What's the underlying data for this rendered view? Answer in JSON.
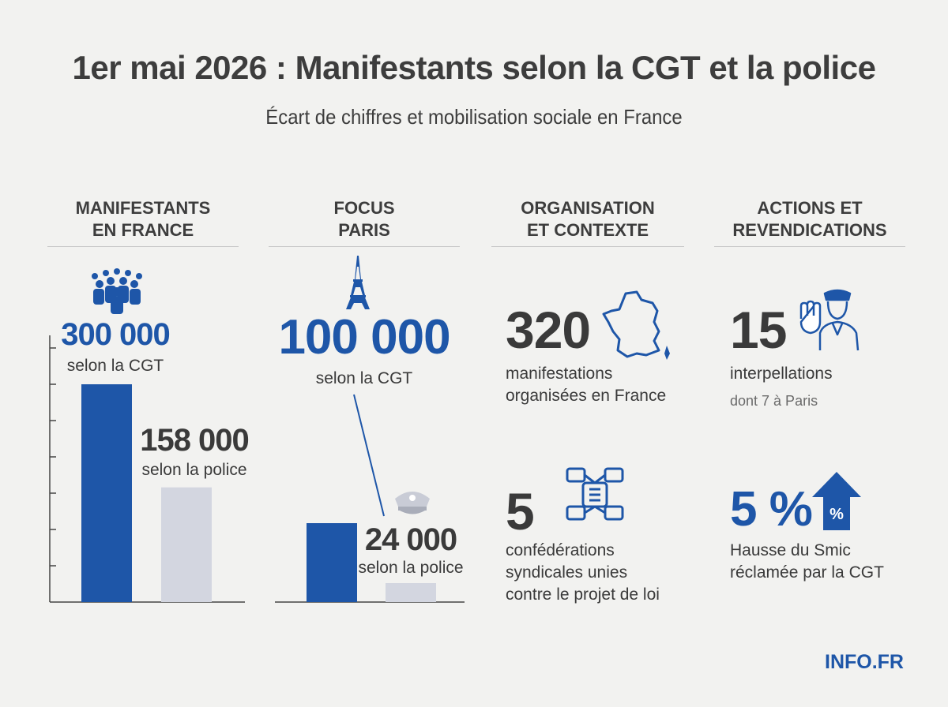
{
  "header": {
    "title": "1er mai 2026 : Manifestants selon la CGT et la police",
    "subtitle": "Écart de chiffres et mobilisation sociale en France"
  },
  "columns": {
    "france": {
      "heading_line1": "MANIFESTANTS",
      "heading_line2": "EN FRANCE"
    },
    "paris": {
      "heading_line1": "FOCUS",
      "heading_line2": "PARIS"
    },
    "organisation": {
      "heading_line1": "ORGANISATION",
      "heading_line2": "ET CONTEXTE"
    },
    "actions": {
      "heading_line1": "ACTIONS ET",
      "heading_line2": "REVENDICATIONS"
    }
  },
  "france": {
    "cgt_value": "300 000",
    "cgt_label": "selon la CGT",
    "police_value": "158 000",
    "police_label": "selon la police"
  },
  "paris": {
    "cgt_value": "100 000",
    "cgt_label": "selon la CGT",
    "police_value": "24 000",
    "police_label": "selon la police"
  },
  "organisation": {
    "stat1_value": "320",
    "stat1_line1": "manifestations",
    "stat1_line2": "organisées en France",
    "stat2_value": "5",
    "stat2_line1": "confédérations",
    "stat2_line2": "syndicales unies",
    "stat2_line3": "contre le projet de loi"
  },
  "actions": {
    "stat1_value": "15",
    "stat1_line1": "interpellations",
    "stat1_note": "dont 7 à Paris",
    "stat2_value": "5 %",
    "stat2_line1": "Hausse du Smic",
    "stat2_line2": "réclamée par la CGT"
  },
  "brand": "INFO.FR",
  "icons": {
    "crowd": "crowd-icon",
    "eiffel": "eiffel-tower-icon",
    "police_cap": "police-cap-icon",
    "france_map": "france-map-icon",
    "hands": "joined-hands-icon",
    "officer": "police-officer-icon",
    "arrow_percent": "arrow-up-percent-icon"
  },
  "colors": {
    "accent": "#1e56a8",
    "police_bar": "#d3d6e0",
    "text": "#3a3a3a"
  },
  "chart_data": [
    {
      "type": "bar",
      "categories": [
        "selon la CGT",
        "selon la police"
      ],
      "values": [
        300000,
        158000
      ],
      "colors": [
        "#1e56a8",
        "#d3d6e0"
      ]
    },
    {
      "type": "bar",
      "categories": [
        "selon la CGT",
        "selon la police"
      ],
      "values": [
        100000,
        24000
      ],
      "colors": [
        "#1e56a8",
        "#d3d6e0"
      ]
    }
  ]
}
